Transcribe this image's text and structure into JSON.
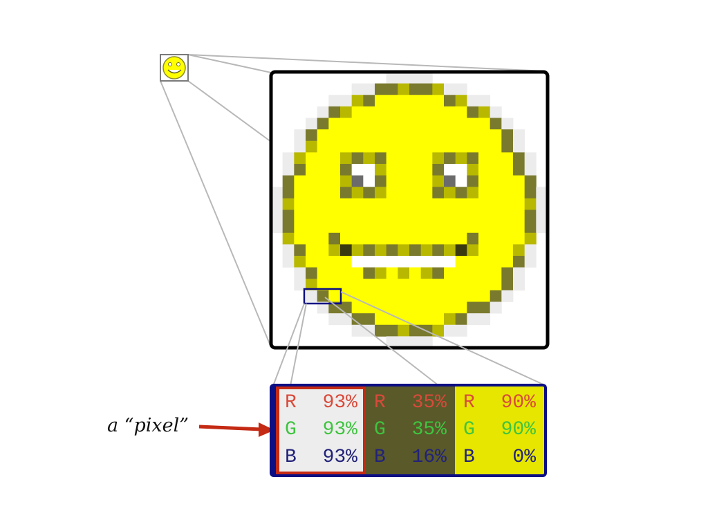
{
  "annotation": {
    "label": "a “pixel”"
  },
  "colors": {
    "smiley_yellow": "#ffff00",
    "frame": "#000000",
    "inset_outline": "#0c0e84",
    "highlight_outline": "#c42a14",
    "arrow": "#c42a14",
    "red_text": "#d94a3a",
    "green_text": "#3fc43f",
    "blue_text": "#22227a"
  },
  "pixels": [
    {
      "bg": "#ededed",
      "rows": [
        {
          "ch": "R",
          "val": "93%",
          "color": "#d94a3a"
        },
        {
          "ch": "G",
          "val": "93%",
          "color": "#3fc43f"
        },
        {
          "ch": "B",
          "val": "93%",
          "color": "#22227a"
        }
      ]
    },
    {
      "bg": "#59592a",
      "rows": [
        {
          "ch": "R",
          "val": "35%",
          "color": "#d94a3a"
        },
        {
          "ch": "G",
          "val": "35%",
          "color": "#3fc43f"
        },
        {
          "ch": "B",
          "val": "16%",
          "color": "#22227a"
        }
      ]
    },
    {
      "bg": "#e6e600",
      "rows": [
        {
          "ch": "R",
          "val": "90%",
          "color": "#d94a3a"
        },
        {
          "ch": "G",
          "val": "90%",
          "color": "#3fc43f"
        },
        {
          "ch": "B",
          "val": "0%",
          "color": "#22227a"
        }
      ]
    }
  ]
}
